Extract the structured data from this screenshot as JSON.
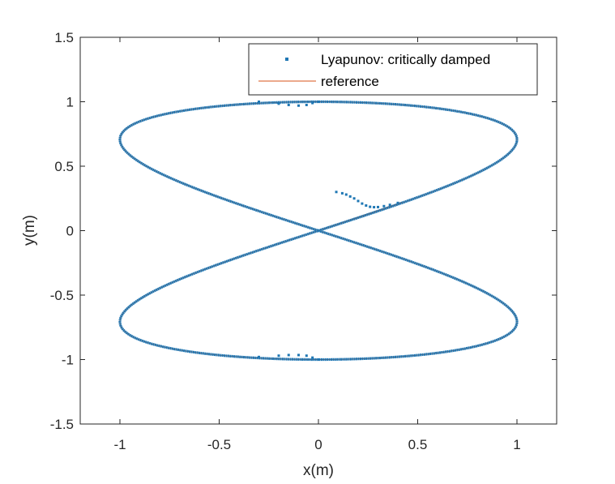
{
  "chart_data": {
    "type": "line",
    "title": "",
    "xlabel": "x(m)",
    "ylabel": "y(m)",
    "xlim": [
      -1.2,
      1.2
    ],
    "ylim": [
      -1.5,
      1.5
    ],
    "xticks": [
      -1,
      -0.5,
      0,
      0.5,
      1
    ],
    "xtick_labels": [
      "-1",
      "-0.5",
      "0",
      "0.5",
      "1"
    ],
    "yticks": [
      -1.5,
      -1,
      -0.5,
      0,
      0.5,
      1,
      1.5
    ],
    "ytick_labels": [
      "-1.5",
      "-1",
      "-0.5",
      "0",
      "0.5",
      "1",
      "1.5"
    ],
    "grid": false,
    "legend_position": "top-right",
    "series": [
      {
        "name": "Lyapunov: critically damped",
        "style": "markers",
        "color": "#1f77b4",
        "initial_transient": [
          [
            0.09,
            0.3
          ],
          [
            0.12,
            0.29
          ],
          [
            0.14,
            0.28
          ],
          [
            0.16,
            0.265
          ],
          [
            0.18,
            0.25
          ],
          [
            0.2,
            0.23
          ],
          [
            0.22,
            0.21
          ],
          [
            0.24,
            0.195
          ],
          [
            0.26,
            0.185
          ],
          [
            0.28,
            0.182
          ],
          [
            0.3,
            0.183
          ],
          [
            0.33,
            0.19
          ],
          [
            0.36,
            0.2
          ],
          [
            0.4,
            0.215
          ]
        ],
        "top_wiggle": [
          [
            -0.3,
            1.0
          ],
          [
            -0.2,
            0.985
          ],
          [
            -0.15,
            0.975
          ],
          [
            -0.1,
            0.97
          ],
          [
            -0.06,
            0.975
          ],
          [
            -0.03,
            0.99
          ],
          [
            0.0,
            1.0
          ]
        ],
        "bottom_wiggle": [
          [
            -0.3,
            -0.98
          ],
          [
            -0.2,
            -0.97
          ],
          [
            -0.15,
            -0.965
          ],
          [
            -0.1,
            -0.965
          ],
          [
            -0.06,
            -0.97
          ],
          [
            -0.03,
            -0.985
          ],
          [
            0.0,
            -1.0
          ]
        ],
        "curve": "figure-eight x = sin(2t)/2 ... approx: x = sin(t)*cos(t)*2/2, y = sin(t)"
      },
      {
        "name": "reference",
        "style": "line",
        "color": "#d95319",
        "initial_segment": [
          [
            0.0,
            0.0
          ],
          [
            0.42,
            0.22
          ]
        ]
      }
    ]
  }
}
